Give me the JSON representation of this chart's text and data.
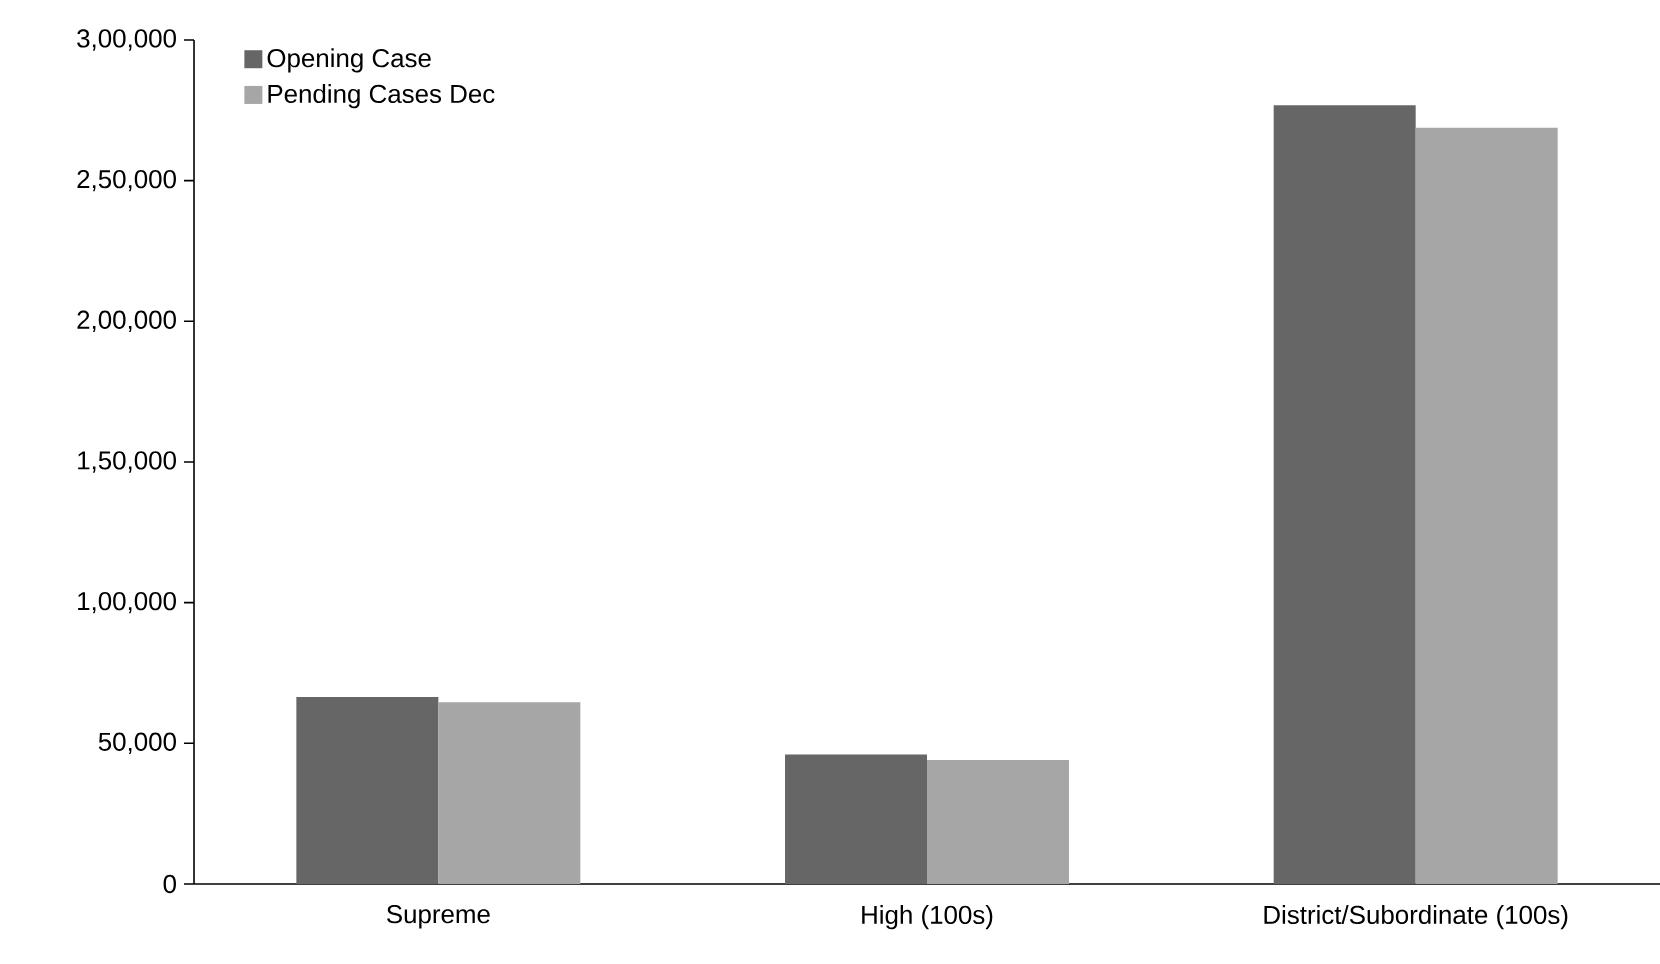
{
  "chart_data": {
    "type": "bar",
    "categories": [
      "Supreme",
      "High (100s)",
      "District/Subordinate (100s)"
    ],
    "series": [
      {
        "name": "Opening Case",
        "color": "#666666",
        "values": [
          66500,
          46000,
          276800
        ]
      },
      {
        "name": "Pending Cases Dec",
        "color": "#a6a6a6",
        "values": [
          64600,
          44100,
          268800
        ]
      }
    ],
    "ylim": [
      0,
      300000
    ],
    "yticks": [
      0,
      {
        "value": 50000,
        "label": "50,000"
      },
      {
        "value": 100000,
        "label": "1,00,000"
      },
      {
        "value": 150000,
        "label": "1,50,000"
      },
      {
        "value": 200000,
        "label": "2,00,000"
      },
      {
        "value": 250000,
        "label": "2,50,000"
      },
      {
        "value": 300000,
        "label": "3,00,000"
      }
    ],
    "grid": false,
    "legend": "top left"
  }
}
